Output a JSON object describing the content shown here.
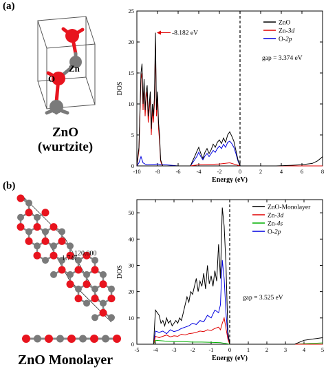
{
  "panels": {
    "a": {
      "label": "(a)",
      "structure_title": "ZnO",
      "structure_subtitle": "(wurtzite)",
      "atom_labels": {
        "o": "O",
        "zn": "Zn"
      },
      "colors": {
        "o": "#e8141e",
        "zn": "#7a7a7a"
      }
    },
    "b": {
      "label": "(b)",
      "structure_title": "ZnO Monolayer",
      "angle_label": "120.000",
      "bond_label": "1.747",
      "colors": {
        "o": "#e8141e",
        "zn": "#7a7a7a"
      }
    }
  },
  "chart_data": [
    {
      "type": "line",
      "xlabel": "Energy (eV)",
      "ylabel": "DOS",
      "xlim": [
        -10,
        8
      ],
      "ylim": [
        0,
        25
      ],
      "xticks": [
        -10,
        -8,
        -6,
        -4,
        -2,
        0,
        2,
        4,
        6,
        8
      ],
      "yticks": [
        0,
        5,
        10,
        15,
        20,
        25
      ],
      "fermi_line_x": 0,
      "legend_position": "top-right",
      "annotations": {
        "peak": "8.182 eV",
        "gap": "gap = 3.374 eV"
      },
      "series": [
        {
          "name": "ZnO",
          "color": "#000000",
          "x": [
            -10,
            -9.8,
            -9.6,
            -9.5,
            -9.4,
            -9.3,
            -9.2,
            -9.1,
            -9.0,
            -8.9,
            -8.8,
            -8.7,
            -8.6,
            -8.5,
            -8.4,
            -8.3,
            -8.2,
            -8.1,
            -8.0,
            -7.9,
            -7.8,
            -7.7,
            -7.6,
            -7.5,
            -7.3,
            -6,
            -4.8,
            -4.6,
            -4.4,
            -4.2,
            -4.0,
            -3.8,
            -3.6,
            -3.4,
            -3.2,
            -3.0,
            -2.8,
            -2.6,
            -2.4,
            -2.2,
            -2.0,
            -1.8,
            -1.6,
            -1.4,
            -1.2,
            -1.0,
            -0.8,
            -0.6,
            -0.4,
            -0.2,
            0,
            3.5,
            5,
            6,
            7,
            7.5,
            7.8,
            8
          ],
          "y": [
            0,
            3,
            15,
            16.5,
            10,
            14,
            9,
            12,
            13,
            8,
            10,
            12,
            6,
            10,
            8,
            11,
            21.5,
            9,
            12,
            7,
            5,
            1,
            0.5,
            0,
            0,
            0,
            0,
            0.8,
            1.5,
            2.3,
            3,
            2,
            1.2,
            2.2,
            2.8,
            2,
            2.6,
            3.5,
            3,
            3.8,
            4.2,
            3.6,
            4.5,
            3.8,
            5,
            5.5,
            4.8,
            4,
            2.5,
            1,
            0,
            0,
            0.1,
            0.2,
            0.4,
            0.8,
            1.2,
            1.5
          ]
        },
        {
          "name": "Zn-3d",
          "color": "#e00000",
          "x": [
            -10,
            -9.8,
            -9.6,
            -9.5,
            -9.4,
            -9.3,
            -9.2,
            -9.1,
            -9.0,
            -8.9,
            -8.8,
            -8.7,
            -8.6,
            -8.5,
            -8.4,
            -8.3,
            -8.2,
            -8.1,
            -8.0,
            -7.9,
            -7.8,
            -7.7,
            -7.6,
            -7.5,
            -7.3,
            -6,
            -4.8,
            -4,
            -2,
            -1,
            0,
            8
          ],
          "y": [
            0,
            2.5,
            14,
            15,
            9,
            13,
            8,
            11,
            12,
            7,
            9,
            11,
            5,
            9,
            7,
            10,
            20,
            8,
            11,
            6,
            4,
            0.8,
            0.3,
            0,
            0,
            0,
            0,
            0.2,
            0.3,
            0.5,
            0,
            0
          ]
        },
        {
          "name": "O-2p",
          "color": "#0000e0",
          "x": [
            -10,
            -9.8,
            -9.6,
            -9.5,
            -9.4,
            -9.2,
            -9.0,
            -8.0,
            -6,
            -4.8,
            -4.6,
            -4.4,
            -4.2,
            -4.0,
            -3.8,
            -3.6,
            -3.4,
            -3.2,
            -3.0,
            -2.8,
            -2.6,
            -2.4,
            -2.2,
            -2.0,
            -1.8,
            -1.6,
            -1.4,
            -1.2,
            -1.0,
            -0.8,
            -0.6,
            -0.4,
            -0.2,
            0,
            8
          ],
          "y": [
            0,
            0.5,
            1.5,
            1,
            0.5,
            0.3,
            0.2,
            0.3,
            0,
            0,
            0.5,
            1,
            1.5,
            2.2,
            1.5,
            1,
            1.6,
            2,
            1.5,
            2,
            2.5,
            2.2,
            2.8,
            3.2,
            2.8,
            3.5,
            3,
            3.8,
            4,
            3.6,
            3,
            2,
            0.8,
            0,
            0
          ]
        }
      ]
    },
    {
      "type": "line",
      "xlabel": "Energy (eV)",
      "ylabel": "DOS",
      "xlim": [
        -5,
        5
      ],
      "ylim": [
        0,
        55
      ],
      "xticks": [
        -5,
        -4,
        -3,
        -2,
        -1,
        0,
        1,
        2,
        3,
        4,
        5
      ],
      "yticks": [
        0,
        10,
        20,
        30,
        40,
        50
      ],
      "fermi_line_x": 0,
      "legend_position": "top-right",
      "annotations": {
        "gap": "gap = 3.525 eV"
      },
      "series": [
        {
          "name": "ZnO-Monolayer",
          "color": "#000000",
          "x": [
            -5,
            -4.1,
            -4.0,
            -3.9,
            -3.8,
            -3.7,
            -3.6,
            -3.5,
            -3.4,
            -3.3,
            -3.2,
            -3.1,
            -3.0,
            -2.9,
            -2.8,
            -2.7,
            -2.6,
            -2.5,
            -2.4,
            -2.3,
            -2.2,
            -2.1,
            -2.0,
            -1.9,
            -1.8,
            -1.7,
            -1.6,
            -1.5,
            -1.4,
            -1.3,
            -1.2,
            -1.1,
            -1.0,
            -0.9,
            -0.8,
            -0.7,
            -0.6,
            -0.5,
            -0.4,
            -0.3,
            -0.2,
            -0.1,
            0,
            3.5,
            4,
            4.5,
            5
          ],
          "y": [
            0,
            0,
            13,
            12,
            11,
            8,
            9,
            7,
            10,
            8,
            9,
            7,
            8,
            9,
            8,
            10,
            9,
            12,
            15,
            18,
            16,
            20,
            19,
            22,
            25,
            20,
            24,
            22,
            27,
            21,
            30,
            23,
            26,
            22,
            28,
            24,
            38,
            25,
            52,
            45,
            30,
            5,
            0,
            0,
            1.5,
            2,
            2.5
          ]
        },
        {
          "name": "Zn-3d",
          "color": "#e00000",
          "x": [
            -5,
            -4.1,
            -4.0,
            -3.8,
            -3.6,
            -3.4,
            -3.2,
            -3.0,
            -2.8,
            -2.6,
            -2.4,
            -2.2,
            -2.0,
            -1.8,
            -1.6,
            -1.4,
            -1.2,
            -1.0,
            -0.8,
            -0.6,
            -0.5,
            -0.4,
            -0.3,
            -0.2,
            -0.1,
            0,
            5
          ],
          "y": [
            0,
            0,
            3,
            2.5,
            3,
            3.5,
            2.8,
            3.2,
            3,
            3.8,
            3.5,
            4,
            4.2,
            4.5,
            5,
            4.8,
            5.5,
            5.2,
            6,
            6.5,
            5.5,
            8,
            10,
            6,
            2,
            0,
            0
          ]
        },
        {
          "name": "Zn-4s",
          "color": "#00b000",
          "x": [
            -5,
            -4.1,
            -4.0,
            -3.5,
            -3.0,
            -2.5,
            -2.0,
            -1.5,
            -1.0,
            -0.5,
            0,
            3.5,
            5
          ],
          "y": [
            0,
            0,
            1.5,
            1.2,
            1,
            1,
            0.8,
            0.8,
            0.7,
            0.6,
            0,
            0,
            0.5
          ]
        },
        {
          "name": "O-2p",
          "color": "#0000e0",
          "x": [
            -5,
            -4.1,
            -4.0,
            -3.8,
            -3.6,
            -3.4,
            -3.2,
            -3.0,
            -2.8,
            -2.6,
            -2.4,
            -2.2,
            -2.0,
            -1.8,
            -1.6,
            -1.4,
            -1.2,
            -1.0,
            -0.8,
            -0.6,
            -0.5,
            -0.4,
            -0.3,
            -0.2,
            -0.1,
            0,
            5
          ],
          "y": [
            0,
            0,
            5,
            4.5,
            5,
            4,
            5.5,
            4.8,
            5.2,
            6,
            6.5,
            7,
            8,
            7.5,
            9,
            8.5,
            11,
            10,
            13,
            12,
            15,
            32,
            25,
            12,
            3,
            0,
            0
          ]
        }
      ]
    }
  ]
}
